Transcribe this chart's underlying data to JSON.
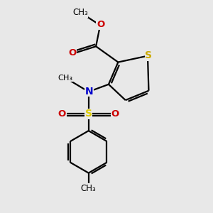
{
  "bg_color": "#e8e8e8",
  "bond_color": "#000000",
  "S_thiophene_color": "#ccaa00",
  "S_sulfonyl_color": "#ddcc00",
  "N_color": "#0000cc",
  "O_color": "#cc0000",
  "lw": 1.6,
  "figsize": [
    3.0,
    3.0
  ],
  "dpi": 100,
  "xlim": [
    0,
    10
  ],
  "ylim": [
    0,
    10
  ]
}
